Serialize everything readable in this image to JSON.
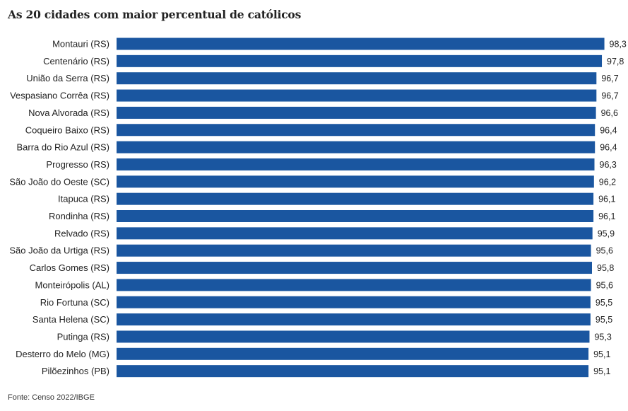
{
  "chart_data": {
    "type": "bar",
    "orientation": "horizontal",
    "title": "As 20 cidades com maior percentual de católicos",
    "categories": [
      "Montauri (RS)",
      "Centenário (RS)",
      "União da Serra (RS)",
      "Vespasiano Corrêa (RS)",
      "Nova Alvorada (RS)",
      "Coqueiro Baixo (RS)",
      "Barra do Rio Azul (RS)",
      "Progresso (RS)",
      "São João do Oeste (SC)",
      "Itapuca (RS)",
      "Rondinha (RS)",
      "Relvado (RS)",
      "São João da Urtiga (RS)",
      "Carlos Gomes (RS)",
      "Monteirópolis (AL)",
      "Rio Fortuna (SC)",
      "Santa Helena (SC)",
      "Putinga (RS)",
      "Desterro do Melo (MG)",
      "Pilõezinhos (PB)"
    ],
    "values": [
      98.3,
      97.8,
      96.7,
      96.7,
      96.6,
      96.4,
      96.4,
      96.3,
      96.2,
      96.1,
      96.1,
      95.9,
      95.6,
      95.8,
      95.6,
      95.5,
      95.5,
      95.3,
      95.1,
      95.1
    ],
    "value_labels": [
      "98,3",
      "97,8",
      "96,7",
      "96,7",
      "96,6",
      "96,4",
      "96,4",
      "96,3",
      "96,2",
      "96,1",
      "96,1",
      "95,9",
      "95,6",
      "95,8",
      "95,6",
      "95,5",
      "95,5",
      "95,3",
      "95,1",
      "95,1"
    ],
    "xlim": [
      0,
      100
    ],
    "grid": false,
    "bar_color": "#1a56a0"
  },
  "source": "Fonte: Censo 2022/IBGE"
}
